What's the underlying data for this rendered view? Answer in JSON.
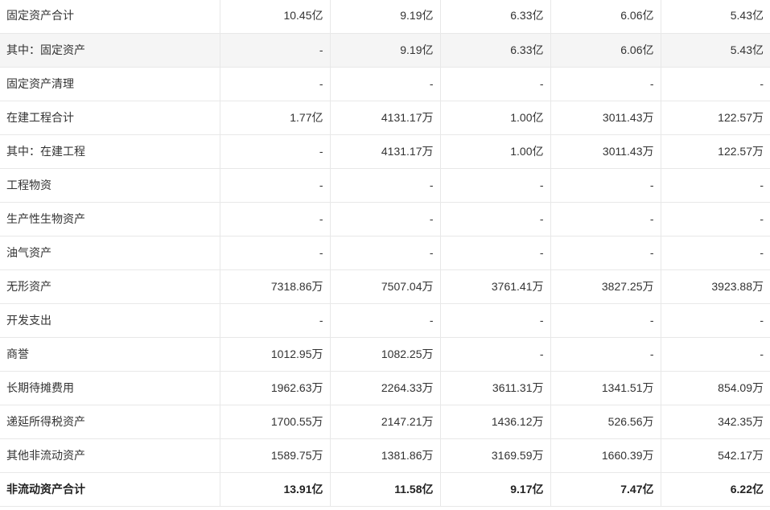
{
  "table": {
    "rows": [
      {
        "label": "固定资产合计",
        "values": [
          "10.45亿",
          "9.19亿",
          "6.33亿",
          "6.06亿",
          "5.43亿"
        ],
        "highlight": false,
        "total": false
      },
      {
        "label": "其中：固定资产",
        "values": [
          "-",
          "9.19亿",
          "6.33亿",
          "6.06亿",
          "5.43亿"
        ],
        "highlight": true,
        "total": false
      },
      {
        "label": "固定资产清理",
        "values": [
          "-",
          "-",
          "-",
          "-",
          "-"
        ],
        "highlight": false,
        "total": false
      },
      {
        "label": "在建工程合计",
        "values": [
          "1.77亿",
          "4131.17万",
          "1.00亿",
          "3011.43万",
          "122.57万"
        ],
        "highlight": false,
        "total": false
      },
      {
        "label": "其中：在建工程",
        "values": [
          "-",
          "4131.17万",
          "1.00亿",
          "3011.43万",
          "122.57万"
        ],
        "highlight": false,
        "total": false
      },
      {
        "label": "工程物资",
        "values": [
          "-",
          "-",
          "-",
          "-",
          "-"
        ],
        "highlight": false,
        "total": false
      },
      {
        "label": "生产性生物资产",
        "values": [
          "-",
          "-",
          "-",
          "-",
          "-"
        ],
        "highlight": false,
        "total": false
      },
      {
        "label": "油气资产",
        "values": [
          "-",
          "-",
          "-",
          "-",
          "-"
        ],
        "highlight": false,
        "total": false
      },
      {
        "label": "无形资产",
        "values": [
          "7318.86万",
          "7507.04万",
          "3761.41万",
          "3827.25万",
          "3923.88万"
        ],
        "highlight": false,
        "total": false
      },
      {
        "label": "开发支出",
        "values": [
          "-",
          "-",
          "-",
          "-",
          "-"
        ],
        "highlight": false,
        "total": false
      },
      {
        "label": "商誉",
        "values": [
          "1012.95万",
          "1082.25万",
          "-",
          "-",
          "-"
        ],
        "highlight": false,
        "total": false
      },
      {
        "label": "长期待摊费用",
        "values": [
          "1962.63万",
          "2264.33万",
          "3611.31万",
          "1341.51万",
          "854.09万"
        ],
        "highlight": false,
        "total": false
      },
      {
        "label": "递延所得税资产",
        "values": [
          "1700.55万",
          "2147.21万",
          "1436.12万",
          "526.56万",
          "342.35万"
        ],
        "highlight": false,
        "total": false
      },
      {
        "label": "其他非流动资产",
        "values": [
          "1589.75万",
          "1381.86万",
          "3169.59万",
          "1660.39万",
          "542.17万"
        ],
        "highlight": false,
        "total": false
      },
      {
        "label": "非流动资产合计",
        "values": [
          "13.91亿",
          "11.58亿",
          "9.17亿",
          "7.47亿",
          "6.22亿"
        ],
        "highlight": false,
        "total": true
      }
    ]
  }
}
